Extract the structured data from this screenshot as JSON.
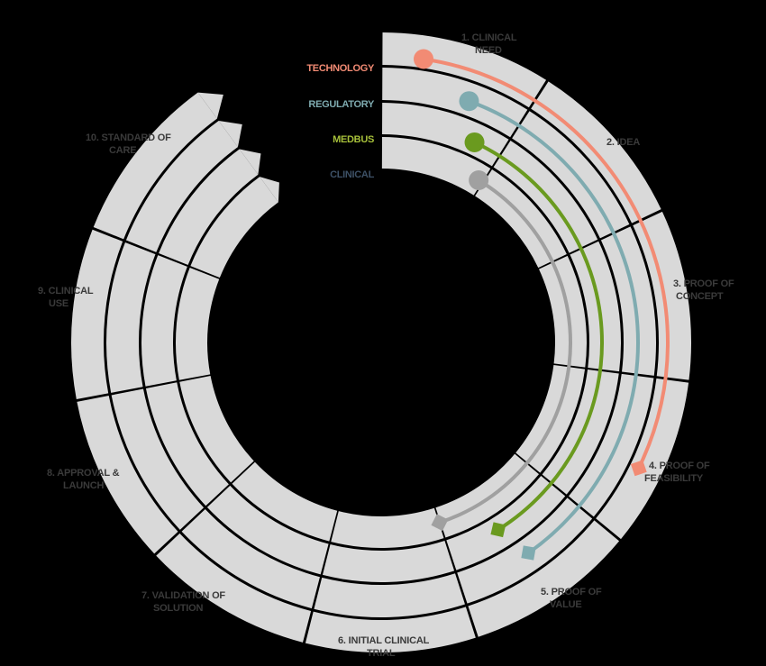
{
  "tracks": [
    {
      "name": "TECHNOLOGY",
      "color": "#f28b74"
    },
    {
      "name": "REGULATORY",
      "color": "#7fabb0"
    },
    {
      "name": "MEDBUS",
      "color": "#a6bf3a"
    },
    {
      "name": "CLINICAL",
      "color": "#3d5166"
    }
  ],
  "stages": [
    {
      "line1": "1. CLINICAL",
      "line2": "NEED"
    },
    {
      "line1": "2. IDEA",
      "line2": ""
    },
    {
      "line1": "3. PROOF OF",
      "line2": "CONCEPT"
    },
    {
      "line1": "4. PROOF OF",
      "line2": "FEASIBILITY"
    },
    {
      "line1": "5. PROOF OF",
      "line2": "VALUE"
    },
    {
      "line1": "6. INITIAL CLINICAL",
      "line2": "TRIAL"
    },
    {
      "line1": "7. VALIDATION OF",
      "line2": "SOLUTION"
    },
    {
      "line1": "8. APPROVAL &",
      "line2": "LAUNCH"
    },
    {
      "line1": "9. CLINICAL",
      "line2": "USE"
    },
    {
      "line1": "10. STANDARD OF",
      "line2": "CARE"
    }
  ],
  "ring_color": "#d9d9d9",
  "progress_colors": [
    "#f28b74",
    "#7fabb0",
    "#6a9a1f",
    "#a0a0a0"
  ]
}
